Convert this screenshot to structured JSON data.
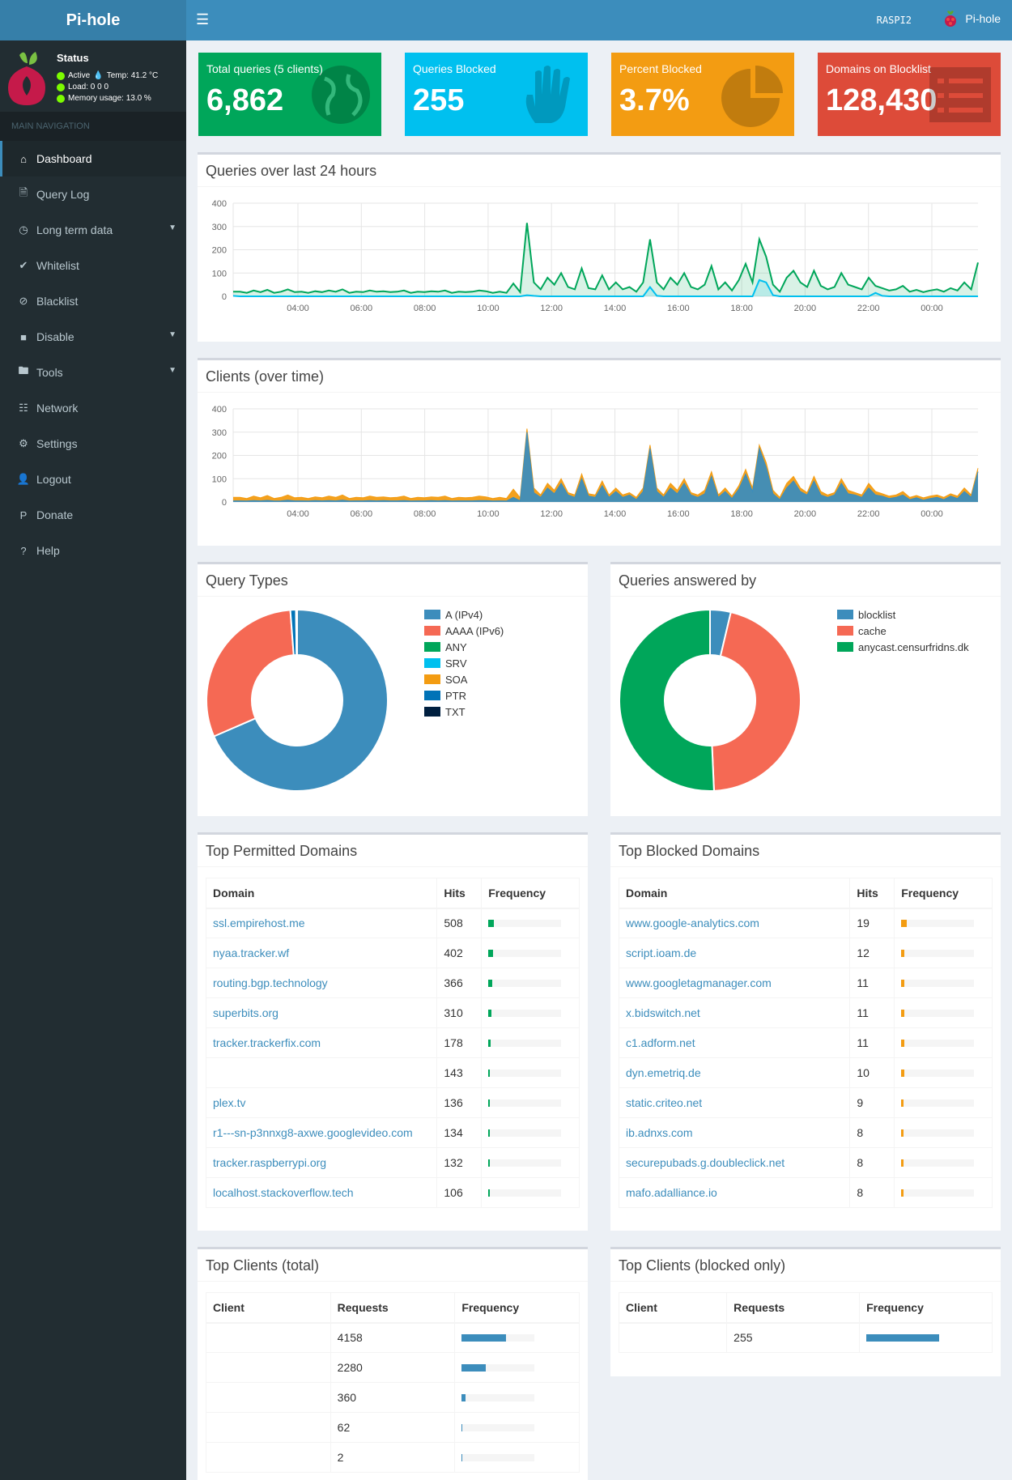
{
  "app": {
    "logo": "Pi-hole",
    "hostname": "RASPI2",
    "user": "Pi-hole"
  },
  "status": {
    "title": "Status",
    "active": "Active",
    "temp": "Temp: 41.2 °C",
    "load": "Load:  0  0  0",
    "memory": "Memory usage:  13.0 %"
  },
  "nav": {
    "header": "MAIN NAVIGATION",
    "items": [
      {
        "label": "Dashboard",
        "icon": "home-icon"
      },
      {
        "label": "Query Log",
        "icon": "file-icon"
      },
      {
        "label": "Long term data",
        "icon": "history-icon"
      },
      {
        "label": "Whitelist",
        "icon": "check-circle-icon"
      },
      {
        "label": "Blacklist",
        "icon": "ban-icon"
      },
      {
        "label": "Disable",
        "icon": "stop-icon"
      },
      {
        "label": "Tools",
        "icon": "folder-icon"
      },
      {
        "label": "Network",
        "icon": "network-icon"
      },
      {
        "label": "Settings",
        "icon": "gears-icon"
      },
      {
        "label": "Logout",
        "icon": "user-times-icon"
      },
      {
        "label": "Donate",
        "icon": "paypal-icon"
      },
      {
        "label": "Help",
        "icon": "question-circle-icon"
      }
    ]
  },
  "stats": [
    {
      "label": "Total queries (5 clients)",
      "value": "6,862",
      "color": "#00a65a",
      "icon": "globe-icon"
    },
    {
      "label": "Queries Blocked",
      "value": "255",
      "color": "#00c0ef",
      "icon": "hand-icon"
    },
    {
      "label": "Percent Blocked",
      "value": "3.7%",
      "color": "#f39c12",
      "icon": "pie-chart-icon"
    },
    {
      "label": "Domains on Blocklist",
      "value": "128,430",
      "color": "#dd4b39",
      "icon": "list-icon"
    }
  ],
  "panels": {
    "queries_24h": "Queries over last 24 hours",
    "clients_time": "Clients (over time)",
    "query_types": "Query Types",
    "answered_by": "Queries answered by",
    "top_permitted": "Top Permitted Domains",
    "top_blocked": "Top Blocked Domains",
    "top_clients": "Top Clients (total)",
    "top_clients_blocked": "Top Clients (blocked only)"
  },
  "chart_data": [
    {
      "type": "area",
      "title": "Queries over last 24 hours",
      "ylim": [
        0,
        400
      ],
      "yticks": [
        "0",
        "100",
        "200",
        "300",
        "400"
      ],
      "xticks": [
        "04:00",
        "06:00",
        "08:00",
        "10:00",
        "12:00",
        "14:00",
        "16:00",
        "18:00",
        "20:00",
        "22:00",
        "00:00"
      ],
      "series": [
        {
          "color": "#00a65a",
          "values": [
            20,
            20,
            15,
            25,
            18,
            28,
            15,
            20,
            30,
            18,
            20,
            15,
            22,
            18,
            25,
            20,
            30,
            15,
            20,
            18,
            25,
            20,
            22,
            18,
            20,
            25,
            15,
            20,
            18,
            22,
            20,
            25,
            15,
            20,
            18,
            20,
            25,
            22,
            15,
            20,
            15,
            55,
            18,
            315,
            60,
            30,
            80,
            50,
            100,
            40,
            30,
            120,
            35,
            30,
            90,
            30,
            60,
            30,
            40,
            20,
            60,
            245,
            60,
            30,
            80,
            50,
            100,
            40,
            30,
            50,
            130,
            30,
            60,
            25,
            70,
            140,
            60,
            245,
            170,
            50,
            20,
            80,
            110,
            60,
            40,
            110,
            45,
            30,
            40,
            100,
            50,
            40,
            30,
            80,
            45,
            35,
            25,
            30,
            45,
            20,
            28,
            18,
            25,
            30,
            20,
            35,
            25,
            60,
            30,
            145
          ]
        },
        {
          "color": "#00c0ef",
          "values": [
            2,
            0,
            0,
            0,
            0,
            0,
            0,
            0,
            0,
            0,
            0,
            0,
            0,
            0,
            0,
            0,
            0,
            0,
            0,
            0,
            0,
            0,
            0,
            0,
            0,
            0,
            0,
            0,
            0,
            0,
            0,
            0,
            0,
            0,
            0,
            0,
            0,
            0,
            0,
            0,
            0,
            0,
            0,
            5,
            2,
            0,
            0,
            0,
            0,
            0,
            0,
            0,
            0,
            0,
            0,
            0,
            0,
            0,
            0,
            0,
            0,
            40,
            2,
            0,
            0,
            0,
            0,
            0,
            0,
            0,
            0,
            0,
            0,
            0,
            0,
            0,
            0,
            70,
            60,
            5,
            0,
            0,
            0,
            0,
            0,
            0,
            0,
            0,
            0,
            0,
            0,
            0,
            0,
            0,
            15,
            2,
            0,
            0,
            0,
            0,
            0,
            0,
            0,
            0,
            0,
            0,
            0,
            0,
            0,
            0
          ]
        }
      ]
    },
    {
      "type": "area",
      "title": "Clients (over time)",
      "ylim": [
        0,
        400
      ],
      "yticks": [
        "0",
        "100",
        "200",
        "300",
        "400"
      ],
      "xticks": [
        "04:00",
        "06:00",
        "08:00",
        "10:00",
        "12:00",
        "14:00",
        "16:00",
        "18:00",
        "20:00",
        "22:00",
        "00:00"
      ],
      "series": [
        {
          "color": "#3c8dbc",
          "values": [
            5,
            5,
            4,
            6,
            5,
            7,
            4,
            5,
            8,
            5,
            5,
            4,
            6,
            5,
            6,
            5,
            8,
            4,
            5,
            5,
            6,
            5,
            6,
            5,
            5,
            6,
            4,
            5,
            5,
            6,
            5,
            6,
            4,
            5,
            5,
            5,
            6,
            6,
            4,
            5,
            4,
            20,
            5,
            300,
            40,
            20,
            60,
            35,
            80,
            30,
            20,
            100,
            25,
            20,
            70,
            20,
            45,
            20,
            30,
            10,
            45,
            230,
            45,
            20,
            60,
            35,
            80,
            30,
            20,
            35,
            110,
            20,
            45,
            15,
            55,
            120,
            45,
            230,
            150,
            35,
            10,
            60,
            90,
            45,
            30,
            90,
            30,
            20,
            30,
            80,
            35,
            30,
            20,
            60,
            30,
            25,
            15,
            20,
            30,
            10,
            18,
            8,
            15,
            20,
            10,
            25,
            15,
            45,
            20,
            130
          ]
        },
        {
          "color": "#f39c12",
          "values": [
            20,
            20,
            15,
            25,
            18,
            28,
            15,
            20,
            30,
            18,
            20,
            15,
            22,
            18,
            25,
            20,
            30,
            15,
            20,
            18,
            25,
            20,
            22,
            18,
            20,
            25,
            15,
            20,
            18,
            22,
            20,
            25,
            15,
            20,
            18,
            20,
            25,
            22,
            15,
            20,
            15,
            55,
            18,
            315,
            60,
            30,
            80,
            50,
            100,
            40,
            30,
            120,
            35,
            30,
            90,
            30,
            60,
            30,
            40,
            20,
            60,
            245,
            60,
            30,
            80,
            50,
            100,
            40,
            30,
            50,
            130,
            30,
            60,
            25,
            70,
            140,
            60,
            245,
            170,
            50,
            20,
            80,
            110,
            60,
            40,
            110,
            45,
            30,
            40,
            100,
            50,
            40,
            30,
            80,
            45,
            35,
            25,
            30,
            45,
            20,
            28,
            18,
            25,
            30,
            20,
            35,
            25,
            60,
            30,
            145
          ]
        }
      ]
    },
    {
      "type": "pie",
      "title": "Query Types",
      "labels": [
        "A (IPv4)",
        "AAAA (IPv6)",
        "ANY",
        "SRV",
        "SOA",
        "PTR",
        "TXT"
      ],
      "values": [
        68.5,
        30.3,
        0,
        0,
        0,
        1.0,
        0.2
      ],
      "colors": [
        "#3c8dbc",
        "#f56954",
        "#00a65a",
        "#00c0ef",
        "#f39c12",
        "#0073b7",
        "#001f3f"
      ]
    },
    {
      "type": "pie",
      "title": "Queries answered by",
      "labels": [
        "blocklist",
        "cache",
        "anycast.censurfridns.dk"
      ],
      "values": [
        3.7,
        45.6,
        50.7
      ],
      "colors": [
        "#3c8dbc",
        "#f56954",
        "#00a65a"
      ]
    }
  ],
  "tables": {
    "permitted": {
      "headers": [
        "Domain",
        "Hits",
        "Frequency"
      ],
      "rows": [
        {
          "domain": "ssl.empirehost.me",
          "hits": "508",
          "pct": 7.4
        },
        {
          "domain": "nyaa.tracker.wf",
          "hits": "402",
          "pct": 5.9
        },
        {
          "domain": "routing.bgp.technology",
          "hits": "366",
          "pct": 5.3
        },
        {
          "domain": "superbits.org",
          "hits": "310",
          "pct": 4.5
        },
        {
          "domain": "tracker.trackerfix.com",
          "hits": "178",
          "pct": 2.6
        },
        {
          "domain": "",
          "hits": "143",
          "pct": 2.1
        },
        {
          "domain": "plex.tv",
          "hits": "136",
          "pct": 2.0
        },
        {
          "domain": "r1---sn-p3nnxg8-axwe.googlevideo.com",
          "hits": "134",
          "pct": 2.0
        },
        {
          "domain": "tracker.raspberrypi.org",
          "hits": "132",
          "pct": 1.9
        },
        {
          "domain": "localhost.stackoverflow.tech",
          "hits": "106",
          "pct": 1.5
        }
      ]
    },
    "blocked": {
      "headers": [
        "Domain",
        "Hits",
        "Frequency"
      ],
      "rows": [
        {
          "domain": "www.google-analytics.com",
          "hits": "19",
          "pct": 7.5
        },
        {
          "domain": "script.ioam.de",
          "hits": "12",
          "pct": 4.7
        },
        {
          "domain": "www.googletagmanager.com",
          "hits": "11",
          "pct": 4.3
        },
        {
          "domain": "x.bidswitch.net",
          "hits": "11",
          "pct": 4.3
        },
        {
          "domain": "c1.adform.net",
          "hits": "11",
          "pct": 4.3
        },
        {
          "domain": "dyn.emetriq.de",
          "hits": "10",
          "pct": 3.9
        },
        {
          "domain": "static.criteo.net",
          "hits": "9",
          "pct": 3.5
        },
        {
          "domain": "ib.adnxs.com",
          "hits": "8",
          "pct": 3.1
        },
        {
          "domain": "securepubads.g.doubleclick.net",
          "hits": "8",
          "pct": 3.1
        },
        {
          "domain": "mafo.adalliance.io",
          "hits": "8",
          "pct": 3.1
        }
      ]
    },
    "clients": {
      "headers": [
        "Client",
        "Requests",
        "Frequency"
      ],
      "rows": [
        {
          "client": "",
          "requests": "4158",
          "pct": 60.6
        },
        {
          "client": "",
          "requests": "2280",
          "pct": 33.2
        },
        {
          "client": "",
          "requests": "360",
          "pct": 5.2
        },
        {
          "client": "",
          "requests": "62",
          "pct": 0.9
        },
        {
          "client": "",
          "requests": "2",
          "pct": 0.03
        }
      ]
    },
    "clients_blocked": {
      "headers": [
        "Client",
        "Requests",
        "Frequency"
      ],
      "rows": [
        {
          "client": "",
          "requests": "255",
          "pct": 100
        }
      ]
    }
  },
  "colors": {
    "permitted_bar": "#00a65a",
    "blocked_bar": "#f39c12",
    "client_bar": "#3c8dbc"
  }
}
